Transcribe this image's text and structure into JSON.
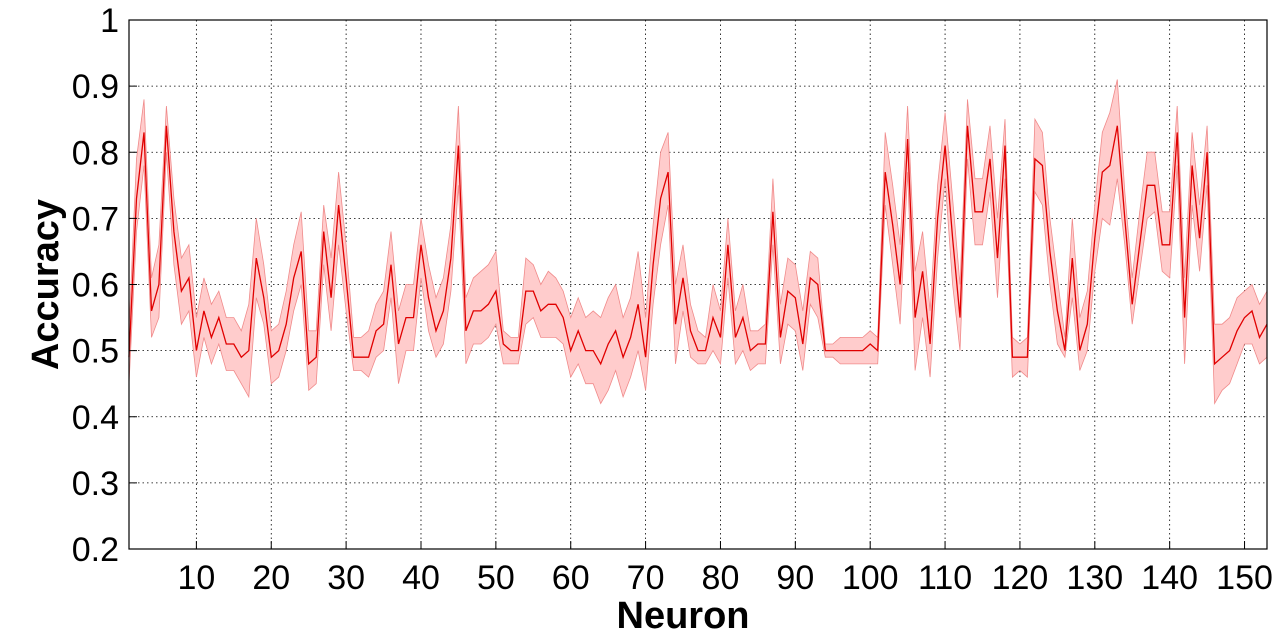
{
  "chart_data": {
    "type": "line",
    "title": "",
    "xlabel": "Neuron",
    "ylabel": "Accuracy",
    "xlim": [
      1,
      153
    ],
    "ylim": [
      0.2,
      1.0
    ],
    "xticks": [
      10,
      20,
      30,
      40,
      50,
      60,
      70,
      80,
      90,
      100,
      110,
      120,
      130,
      140,
      150
    ],
    "xtick_labels": [
      "10",
      "20",
      "30",
      "40",
      "50",
      "60",
      "70",
      "80",
      "90",
      "100",
      "110",
      "120",
      "130",
      "140",
      "150"
    ],
    "yticks": [
      0.2,
      0.3,
      0.4,
      0.5,
      0.6,
      0.7,
      0.8,
      0.9,
      1.0
    ],
    "ytick_labels": [
      "0.2",
      "0.3",
      "0.4",
      "0.5",
      "0.6",
      "0.7",
      "0.8",
      "0.9",
      "1"
    ],
    "grid": true,
    "line_color": "#e00000",
    "band_color": "#ffcccc",
    "series": [
      {
        "x": [
          1,
          2,
          3,
          4,
          5,
          6,
          7,
          8,
          9,
          10,
          11,
          12,
          13,
          14,
          15,
          16,
          17,
          18,
          19,
          20,
          21,
          22,
          23,
          24,
          25,
          26,
          27,
          28,
          29,
          30,
          31,
          32,
          33,
          34,
          35,
          36,
          37,
          38,
          39,
          40,
          41,
          42,
          43,
          44,
          45,
          46,
          47,
          48,
          49,
          50,
          51,
          52,
          53,
          54,
          55,
          56,
          57,
          58,
          59,
          60,
          61,
          62,
          63,
          64,
          65,
          66,
          67,
          68,
          69,
          70,
          71,
          72,
          73,
          74,
          75,
          76,
          77,
          78,
          79,
          80,
          81,
          82,
          83,
          84,
          85,
          86,
          87,
          88,
          89,
          90,
          91,
          92,
          93,
          94,
          95,
          96,
          97,
          98,
          99,
          100,
          101,
          102,
          103,
          104,
          105,
          106,
          107,
          108,
          109,
          110,
          111,
          112,
          113,
          114,
          115,
          116,
          117,
          118,
          119,
          120,
          121,
          122,
          123,
          124,
          125,
          126,
          127,
          128,
          129,
          130,
          131,
          132,
          133,
          134,
          135,
          136,
          137,
          138,
          139,
          140,
          141,
          142,
          143,
          144,
          145,
          146,
          147,
          148,
          149,
          150,
          151,
          152,
          153
        ],
        "y": [
          0.49,
          0.73,
          0.83,
          0.56,
          0.6,
          0.84,
          0.68,
          0.59,
          0.61,
          0.5,
          0.56,
          0.52,
          0.55,
          0.51,
          0.51,
          0.49,
          0.5,
          0.64,
          0.58,
          0.49,
          0.5,
          0.54,
          0.61,
          0.65,
          0.48,
          0.49,
          0.68,
          0.58,
          0.72,
          0.61,
          0.49,
          0.49,
          0.49,
          0.53,
          0.54,
          0.63,
          0.51,
          0.55,
          0.55,
          0.66,
          0.58,
          0.53,
          0.56,
          0.64,
          0.81,
          0.53,
          0.56,
          0.56,
          0.57,
          0.59,
          0.51,
          0.5,
          0.5,
          0.59,
          0.59,
          0.56,
          0.57,
          0.57,
          0.55,
          0.5,
          0.53,
          0.5,
          0.5,
          0.48,
          0.51,
          0.53,
          0.49,
          0.52,
          0.57,
          0.49,
          0.63,
          0.73,
          0.77,
          0.54,
          0.61,
          0.53,
          0.5,
          0.5,
          0.55,
          0.52,
          0.66,
          0.52,
          0.55,
          0.5,
          0.51,
          0.51,
          0.71,
          0.52,
          0.59,
          0.58,
          0.51,
          0.61,
          0.6,
          0.5,
          0.5,
          0.5,
          0.5,
          0.5,
          0.5,
          0.51,
          0.5,
          0.77,
          0.69,
          0.6,
          0.82,
          0.55,
          0.62,
          0.51,
          0.7,
          0.81,
          0.67,
          0.55,
          0.84,
          0.71,
          0.71,
          0.79,
          0.64,
          0.81,
          0.49,
          0.49,
          0.49,
          0.79,
          0.78,
          0.65,
          0.56,
          0.5,
          0.64,
          0.5,
          0.54,
          0.67,
          0.77,
          0.78,
          0.84,
          0.7,
          0.57,
          0.66,
          0.75,
          0.75,
          0.66,
          0.66,
          0.83,
          0.55,
          0.78,
          0.67,
          0.8,
          0.48,
          0.49,
          0.5,
          0.53,
          0.55,
          0.56,
          0.52,
          0.54
        ],
        "y_low": [
          0.45,
          0.68,
          0.78,
          0.52,
          0.55,
          0.8,
          0.63,
          0.54,
          0.56,
          0.46,
          0.52,
          0.48,
          0.51,
          0.47,
          0.47,
          0.45,
          0.43,
          0.58,
          0.54,
          0.45,
          0.46,
          0.5,
          0.56,
          0.6,
          0.44,
          0.45,
          0.63,
          0.53,
          0.66,
          0.56,
          0.47,
          0.47,
          0.46,
          0.49,
          0.5,
          0.58,
          0.45,
          0.5,
          0.5,
          0.61,
          0.53,
          0.49,
          0.51,
          0.59,
          0.75,
          0.48,
          0.51,
          0.51,
          0.52,
          0.54,
          0.48,
          0.48,
          0.48,
          0.54,
          0.55,
          0.52,
          0.52,
          0.52,
          0.51,
          0.46,
          0.48,
          0.45,
          0.45,
          0.42,
          0.44,
          0.47,
          0.43,
          0.46,
          0.5,
          0.44,
          0.57,
          0.66,
          0.72,
          0.48,
          0.56,
          0.49,
          0.48,
          0.48,
          0.5,
          0.48,
          0.61,
          0.48,
          0.5,
          0.47,
          0.48,
          0.48,
          0.66,
          0.48,
          0.54,
          0.53,
          0.47,
          0.57,
          0.55,
          0.49,
          0.49,
          0.48,
          0.48,
          0.48,
          0.48,
          0.48,
          0.48,
          0.72,
          0.63,
          0.54,
          0.77,
          0.47,
          0.55,
          0.46,
          0.64,
          0.76,
          0.6,
          0.5,
          0.79,
          0.66,
          0.66,
          0.74,
          0.58,
          0.76,
          0.46,
          0.47,
          0.46,
          0.74,
          0.72,
          0.6,
          0.51,
          0.49,
          0.58,
          0.47,
          0.5,
          0.62,
          0.7,
          0.69,
          0.76,
          0.66,
          0.54,
          0.62,
          0.7,
          0.71,
          0.62,
          0.61,
          0.78,
          0.48,
          0.72,
          0.62,
          0.75,
          0.42,
          0.44,
          0.45,
          0.48,
          0.51,
          0.51,
          0.48,
          0.49
        ],
        "y_high": [
          0.53,
          0.79,
          0.88,
          0.61,
          0.66,
          0.87,
          0.73,
          0.64,
          0.66,
          0.55,
          0.61,
          0.57,
          0.59,
          0.55,
          0.55,
          0.53,
          0.57,
          0.7,
          0.63,
          0.53,
          0.54,
          0.59,
          0.66,
          0.71,
          0.53,
          0.53,
          0.72,
          0.64,
          0.77,
          0.66,
          0.52,
          0.52,
          0.53,
          0.57,
          0.59,
          0.68,
          0.56,
          0.6,
          0.6,
          0.7,
          0.63,
          0.58,
          0.61,
          0.69,
          0.87,
          0.58,
          0.61,
          0.62,
          0.63,
          0.65,
          0.53,
          0.52,
          0.52,
          0.64,
          0.63,
          0.6,
          0.62,
          0.61,
          0.59,
          0.55,
          0.58,
          0.55,
          0.56,
          0.55,
          0.58,
          0.6,
          0.55,
          0.58,
          0.65,
          0.55,
          0.69,
          0.8,
          0.83,
          0.6,
          0.66,
          0.57,
          0.53,
          0.52,
          0.6,
          0.56,
          0.7,
          0.56,
          0.6,
          0.53,
          0.53,
          0.54,
          0.76,
          0.57,
          0.64,
          0.63,
          0.56,
          0.65,
          0.64,
          0.51,
          0.51,
          0.52,
          0.52,
          0.52,
          0.52,
          0.53,
          0.52,
          0.83,
          0.75,
          0.66,
          0.87,
          0.62,
          0.68,
          0.56,
          0.75,
          0.86,
          0.73,
          0.6,
          0.88,
          0.76,
          0.76,
          0.84,
          0.7,
          0.85,
          0.52,
          0.51,
          0.52,
          0.85,
          0.83,
          0.7,
          0.61,
          0.52,
          0.7,
          0.55,
          0.59,
          0.72,
          0.83,
          0.86,
          0.91,
          0.74,
          0.61,
          0.71,
          0.8,
          0.8,
          0.71,
          0.71,
          0.87,
          0.61,
          0.83,
          0.72,
          0.84,
          0.54,
          0.54,
          0.55,
          0.58,
          0.59,
          0.6,
          0.57,
          0.59
        ]
      }
    ]
  }
}
